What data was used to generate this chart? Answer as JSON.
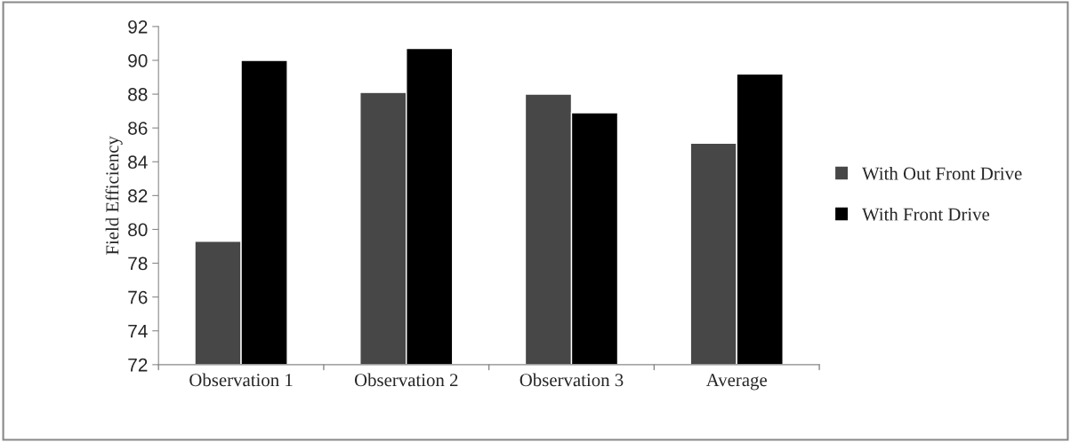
{
  "chart_data": {
    "type": "bar",
    "ylabel": "Field Efficiency",
    "categories": [
      "Observation 1",
      "Observation 2",
      "Observation 3",
      "Average"
    ],
    "series": [
      {
        "name": "With Out Front Drive",
        "color": "#474747",
        "values": [
          79.3,
          88.1,
          88.0,
          85.1
        ]
      },
      {
        "name": "With Front Drive",
        "color": "#000000",
        "values": [
          90.0,
          90.7,
          86.9,
          89.2
        ]
      }
    ],
    "ylim": [
      72,
      92
    ],
    "yticks": [
      72,
      74,
      76,
      78,
      80,
      82,
      84,
      86,
      88,
      90,
      92
    ],
    "grid": false,
    "legend": "right"
  }
}
